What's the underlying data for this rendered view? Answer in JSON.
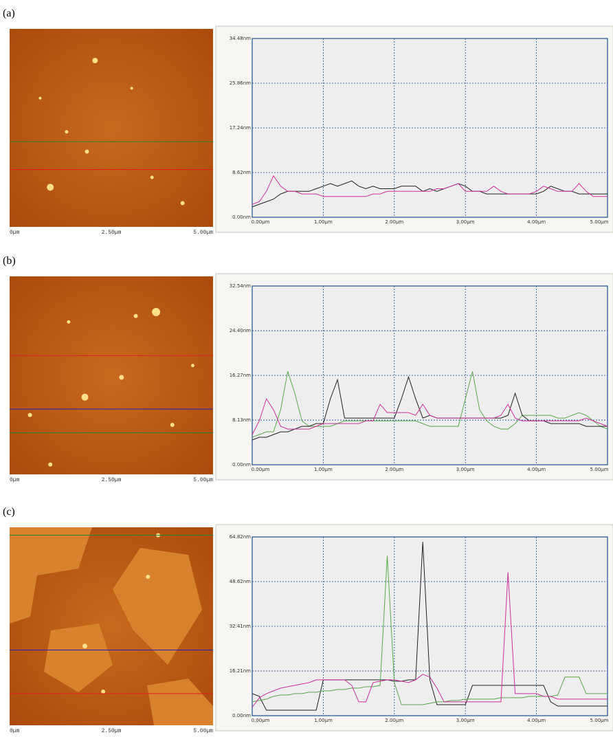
{
  "chart_data": [
    {
      "type": "line",
      "panel_label": "(a)",
      "image_labels": [
        "0µm",
        "2.50µm",
        "5.00µm"
      ],
      "x": [
        0,
        0.1,
        0.2,
        0.3,
        0.4,
        0.5,
        0.6,
        0.7,
        0.8,
        0.9,
        1.0,
        1.1,
        1.2,
        1.3,
        1.4,
        1.5,
        1.6,
        1.7,
        1.8,
        1.9,
        2.0,
        2.1,
        2.2,
        2.3,
        2.4,
        2.5,
        2.6,
        2.7,
        2.8,
        2.9,
        3.0,
        3.1,
        3.2,
        3.3,
        3.4,
        3.5,
        3.6,
        3.7,
        3.8,
        3.9,
        4.0,
        4.1,
        4.2,
        4.3,
        4.4,
        4.5,
        4.6,
        4.7,
        4.8,
        4.9,
        5.0
      ],
      "xlim": [
        0,
        5
      ],
      "xticks": [
        {
          "value": 0,
          "label": "0.00µm"
        },
        {
          "value": 1,
          "label": "1.00µm"
        },
        {
          "value": 2,
          "label": "2.00µm"
        },
        {
          "value": 3,
          "label": "3.00µm"
        },
        {
          "value": 4,
          "label": "4.00µm"
        },
        {
          "value": 5,
          "label": "5.00µm"
        }
      ],
      "ylim": [
        0,
        34.48
      ],
      "yticks": [
        {
          "value": 0,
          "label": "0.00nm"
        },
        {
          "value": 8.62,
          "label": "8.62nm"
        },
        {
          "value": 17.24,
          "label": "17.24nm"
        },
        {
          "value": 25.86,
          "label": "25.86nm"
        },
        {
          "value": 34.48,
          "label": "34.48nm"
        }
      ],
      "grid": true,
      "series": [
        {
          "color": "#202020",
          "values": [
            2,
            2.5,
            3,
            3.5,
            4.5,
            5,
            5,
            5,
            5,
            5.5,
            6,
            6.5,
            6,
            6.5,
            7,
            6,
            5.5,
            6,
            5.5,
            5.5,
            5.5,
            6,
            6,
            6,
            5,
            5.5,
            5,
            5.5,
            6,
            6.5,
            6,
            5,
            5,
            4.5,
            4.5,
            4.5,
            4.5,
            4.5,
            4.5,
            4.5,
            4.5,
            5,
            6,
            5.5,
            5,
            5,
            4.5,
            4.5,
            4.5,
            4.5,
            4.5
          ]
        },
        {
          "color": "#d0309a",
          "values": [
            2.5,
            3,
            5,
            8,
            6,
            5,
            5,
            4.5,
            4.5,
            4.5,
            4,
            4,
            4,
            4,
            4,
            4,
            4,
            4.5,
            4.5,
            5,
            5,
            5,
            5,
            5,
            5,
            5,
            5.5,
            5.5,
            6,
            6.5,
            5,
            5,
            5,
            5,
            6,
            5,
            4.5,
            4.5,
            4.5,
            4.5,
            5,
            6,
            5.5,
            5,
            5,
            5,
            6.5,
            5,
            4,
            4,
            4
          ]
        }
      ]
    },
    {
      "type": "line",
      "panel_label": "(b)",
      "image_labels": [
        "0µm",
        "2.50µm",
        "5.00µm"
      ],
      "x": [
        0,
        0.1,
        0.2,
        0.3,
        0.4,
        0.5,
        0.6,
        0.7,
        0.8,
        0.9,
        1.0,
        1.1,
        1.2,
        1.3,
        1.4,
        1.5,
        1.6,
        1.7,
        1.8,
        1.9,
        2.0,
        2.1,
        2.2,
        2.3,
        2.4,
        2.5,
        2.6,
        2.7,
        2.8,
        2.9,
        3.0,
        3.1,
        3.2,
        3.3,
        3.4,
        3.5,
        3.6,
        3.7,
        3.8,
        3.9,
        4.0,
        4.1,
        4.2,
        4.3,
        4.4,
        4.5,
        4.6,
        4.7,
        4.8,
        4.9,
        5.0
      ],
      "xlim": [
        0,
        5
      ],
      "xticks": [
        {
          "value": 0,
          "label": "0.00µm"
        },
        {
          "value": 1,
          "label": "1.00µm"
        },
        {
          "value": 2,
          "label": "2.00µm"
        },
        {
          "value": 3,
          "label": "3.00µm"
        },
        {
          "value": 4,
          "label": "4.00µm"
        },
        {
          "value": 5,
          "label": "5.00µm"
        }
      ],
      "ylim": [
        0,
        32.54
      ],
      "yticks": [
        {
          "value": 0,
          "label": "0.00nm"
        },
        {
          "value": 8.13,
          "label": "8.13nm"
        },
        {
          "value": 16.27,
          "label": "16.27nm"
        },
        {
          "value": 24.4,
          "label": "24.40nm"
        },
        {
          "value": 32.54,
          "label": "32.54nm"
        }
      ],
      "grid": true,
      "series": [
        {
          "color": "#5aa84a",
          "values": [
            5,
            5.5,
            6,
            6,
            10,
            17,
            13,
            8,
            7,
            7,
            7,
            7,
            7.5,
            8,
            8,
            8,
            8,
            8,
            8,
            8,
            8,
            8,
            8,
            8,
            7.5,
            7,
            7,
            7,
            7,
            7,
            12,
            17,
            10,
            8,
            7,
            6.5,
            6.5,
            7.5,
            9,
            9,
            9,
            9,
            9,
            8.5,
            8.5,
            9,
            9.5,
            9,
            8,
            7,
            6.5
          ]
        },
        {
          "color": "#202020",
          "values": [
            4.5,
            5,
            5,
            5.5,
            6,
            6,
            6.5,
            7,
            7,
            7.5,
            7.5,
            12,
            15.5,
            8.5,
            8.5,
            8.5,
            8.5,
            8.5,
            8.5,
            8.5,
            8.5,
            12,
            16,
            12,
            8.5,
            9,
            8.5,
            8.5,
            8.5,
            8.5,
            8.5,
            8.5,
            8.5,
            8.5,
            8.5,
            8.5,
            9,
            13,
            9,
            8,
            8,
            8,
            7.5,
            7.5,
            7.5,
            7.5,
            7.5,
            7,
            7,
            7,
            7
          ]
        },
        {
          "color": "#d0309a",
          "values": [
            5.5,
            8,
            12,
            10,
            7,
            6.5,
            6.5,
            6.5,
            6.5,
            7,
            7.5,
            7.5,
            7.5,
            7.5,
            7.5,
            7.5,
            8,
            8,
            11,
            9.5,
            9.5,
            9.5,
            9.5,
            9,
            11,
            9,
            8.5,
            8.5,
            8.5,
            8.5,
            8.5,
            8.5,
            8.5,
            8.5,
            8.5,
            9,
            11,
            8.5,
            8,
            8,
            8,
            8,
            8,
            8,
            8,
            8,
            8,
            8.5,
            8,
            7.5,
            7
          ]
        }
      ]
    },
    {
      "type": "line",
      "panel_label": "(c)",
      "image_labels": [
        "0µm",
        "2.50µm",
        "5.00µm"
      ],
      "x": [
        0,
        0.1,
        0.2,
        0.3,
        0.4,
        0.5,
        0.6,
        0.7,
        0.8,
        0.9,
        1.0,
        1.1,
        1.2,
        1.3,
        1.4,
        1.5,
        1.6,
        1.7,
        1.8,
        1.9,
        2.0,
        2.1,
        2.2,
        2.3,
        2.4,
        2.5,
        2.6,
        2.7,
        2.8,
        2.9,
        3.0,
        3.1,
        3.2,
        3.3,
        3.4,
        3.5,
        3.6,
        3.7,
        3.8,
        3.9,
        4.0,
        4.1,
        4.2,
        4.3,
        4.4,
        4.5,
        4.6,
        4.7,
        4.8,
        4.9,
        5.0
      ],
      "xlim": [
        0,
        5
      ],
      "xticks": [
        {
          "value": 0,
          "label": "0.00µm"
        },
        {
          "value": 1,
          "label": "1.00µm"
        },
        {
          "value": 2,
          "label": "2.00µm"
        },
        {
          "value": 3,
          "label": "3.00µm"
        },
        {
          "value": 4,
          "label": "4.00µm"
        },
        {
          "value": 5,
          "label": "5.00µm"
        }
      ],
      "ylim": [
        0,
        64.82
      ],
      "yticks": [
        {
          "value": 0,
          "label": "0.00nm"
        },
        {
          "value": 16.21,
          "label": "16.21nm"
        },
        {
          "value": 32.41,
          "label": "32.41nm"
        },
        {
          "value": 48.62,
          "label": "48.62nm"
        },
        {
          "value": 64.82,
          "label": "64.82nm"
        }
      ],
      "grid": true,
      "series": [
        {
          "color": "#202020",
          "values": [
            8,
            7,
            2,
            2,
            2,
            2,
            2,
            2,
            2,
            2,
            13,
            13,
            13,
            13,
            13,
            13,
            13,
            13,
            13,
            13,
            12.5,
            12.5,
            13,
            13,
            63,
            13,
            4,
            4,
            4,
            4,
            4,
            11,
            11,
            11,
            11,
            11,
            11,
            11,
            11,
            11,
            11,
            11,
            5,
            3.5,
            3.5,
            3.5,
            3.5,
            3.5,
            3.5,
            3.5,
            3.5
          ]
        },
        {
          "color": "#5aa84a",
          "values": [
            5,
            5.5,
            6,
            7,
            7.5,
            7.5,
            8,
            8,
            8.5,
            8.5,
            9,
            9,
            9.5,
            9.5,
            10,
            10,
            10.5,
            10.5,
            11,
            58,
            12,
            4,
            4,
            4,
            4,
            4.5,
            5,
            5,
            5.5,
            5.5,
            6,
            6,
            6,
            6,
            6,
            6.5,
            6.5,
            6.5,
            6.5,
            7,
            7,
            7,
            7,
            7.5,
            14,
            14,
            14,
            8,
            8,
            8,
            8
          ]
        },
        {
          "color": "#d0309a",
          "values": [
            3,
            6.5,
            8,
            9,
            10,
            10.5,
            11,
            11.5,
            12,
            13,
            13,
            13,
            13,
            13,
            11,
            5,
            5,
            12,
            12.5,
            13,
            13,
            12.5,
            12,
            13,
            15,
            14,
            10,
            5,
            5,
            5,
            5,
            5,
            5,
            5,
            5,
            5,
            52,
            8,
            8,
            8,
            8,
            7,
            7,
            6,
            6,
            6,
            6,
            6,
            6,
            6,
            6
          ]
        }
      ]
    }
  ]
}
